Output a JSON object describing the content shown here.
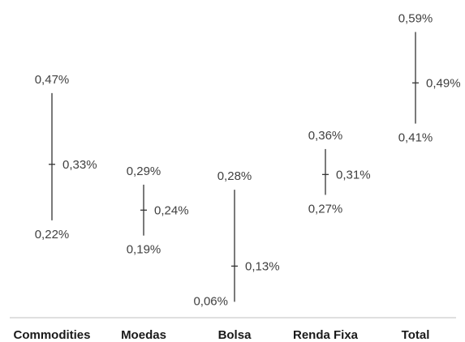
{
  "chart_data": {
    "type": "range",
    "categories": [
      "Commodities",
      "Moedas",
      "Bolsa",
      "Renda Fixa",
      "Total"
    ],
    "high": [
      0.47,
      0.29,
      0.28,
      0.36,
      0.59
    ],
    "mid": [
      0.33,
      0.24,
      0.13,
      0.31,
      0.49
    ],
    "low": [
      0.22,
      0.19,
      0.06,
      0.27,
      0.41
    ],
    "high_labels": [
      "0,47%",
      "0,29%",
      "0,28%",
      "0,36%",
      "0,59%"
    ],
    "mid_labels": [
      "0,33%",
      "0,24%",
      "0,13%",
      "0,31%",
      "0,49%"
    ],
    "low_labels": [
      "0,22%",
      "0,19%",
      "0,06%",
      "0,27%",
      "0,41%"
    ],
    "title": "",
    "xlabel": "",
    "ylabel": "",
    "grid": false,
    "colors": {
      "line": "#333333",
      "axis": "#bfbfbf",
      "value_text": "#404040",
      "category_text": "#1a1a1a"
    }
  }
}
